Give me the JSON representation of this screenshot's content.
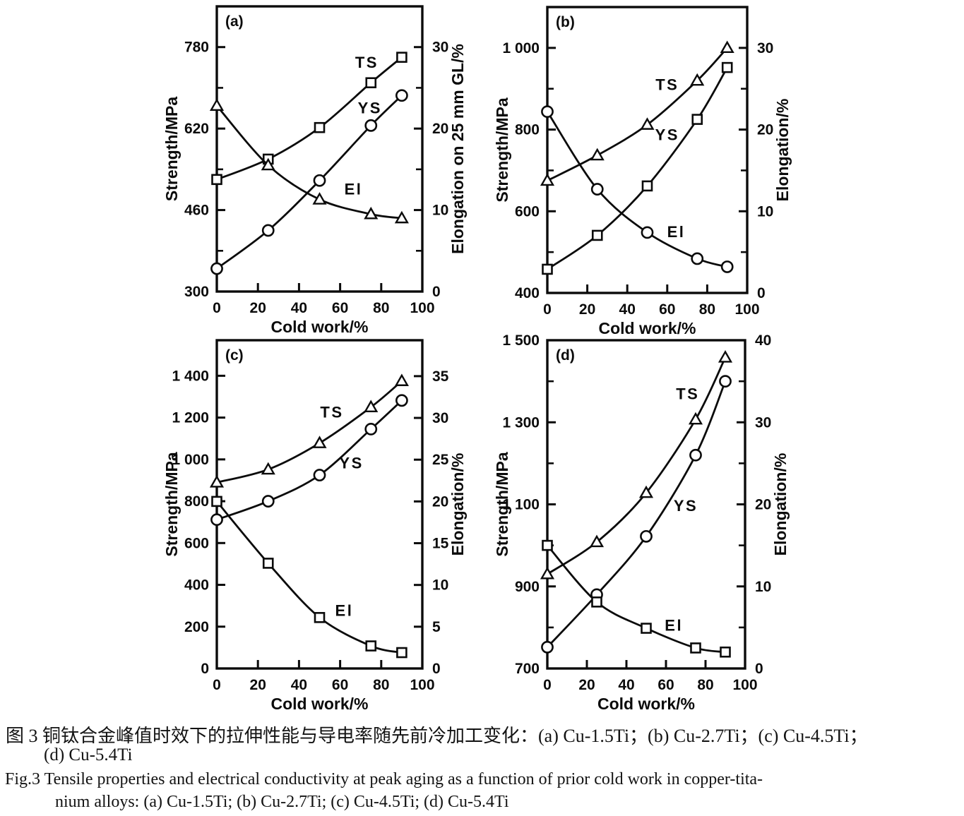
{
  "figure": {
    "caption_zh_line1": "图 3  铜钛合金峰值时效下的拉伸性能与导电率随先前冷加工变化：(a) Cu-1.5Ti；(b) Cu-2.7Ti；(c) Cu-4.5Ti；",
    "caption_zh_line2": "(d) Cu-5.4Ti",
    "caption_en_line1": "Fig.3 Tensile properties and electrical conductivity at peak aging as a function of prior cold work in copper-tita-",
    "caption_en_line2": "nium alloys: (a) Cu-1.5Ti; (b) Cu-2.7Ti; (c) Cu-4.5Ti; (d) Cu-5.4Ti"
  },
  "chart_data": [
    {
      "type": "line",
      "panel_label": "(a)",
      "alloy": "Cu-1.5Ti",
      "xlabel": "Cold work/%",
      "xlim": [
        0,
        100
      ],
      "x_ticks": [
        {
          "v": 0,
          "t": "0"
        },
        {
          "v": 20,
          "t": "20"
        },
        {
          "v": 40,
          "t": "40"
        },
        {
          "v": 60,
          "t": "60"
        },
        {
          "v": 80,
          "t": "80"
        },
        {
          "v": 100,
          "t": "100"
        }
      ],
      "x": [
        0,
        25,
        50,
        75,
        90
      ],
      "left_axis": {
        "label": "Strength/MPa",
        "lim": [
          300,
          860
        ],
        "major": [
          {
            "v": 780,
            "t": "780"
          },
          {
            "v": 620,
            "t": "620"
          },
          {
            "v": 460,
            "t": "460"
          },
          {
            "v": 300,
            "t": "300"
          }
        ],
        "minor": [
          380,
          540,
          700
        ]
      },
      "right_axis": {
        "label": "Elongation on 25 mm GL/%",
        "lim": [
          0,
          35
        ],
        "major": [
          {
            "v": 30,
            "t": "30"
          },
          {
            "v": 20,
            "t": "20"
          },
          {
            "v": 10,
            "t": "10"
          },
          {
            "v": 0,
            "t": "0"
          }
        ],
        "minor": [
          5,
          15,
          25
        ]
      },
      "series": [
        {
          "name": "TS",
          "axis": "left",
          "marker": "square",
          "values": [
            520,
            560,
            622,
            710,
            760
          ],
          "label_fx": 0.73,
          "label_fy": 0.215
        },
        {
          "name": "YS",
          "axis": "left",
          "marker": "circle",
          "values": [
            345,
            420,
            518,
            626,
            685
          ],
          "label_fx": 0.745,
          "label_fy": 0.375
        },
        {
          "name": "El",
          "axis": "right",
          "marker": "triangle",
          "values": [
            22.8,
            15.5,
            11.3,
            9.5,
            9.0
          ],
          "label_fx": 0.665,
          "label_fy": 0.66
        }
      ]
    },
    {
      "type": "line",
      "panel_label": "(b)",
      "alloy": "Cu-2.7Ti",
      "xlabel": "Cold work/%",
      "xlim": [
        0,
        100
      ],
      "x_ticks": [
        {
          "v": 0,
          "t": "0"
        },
        {
          "v": 20,
          "t": "20"
        },
        {
          "v": 40,
          "t": "40"
        },
        {
          "v": 60,
          "t": "60"
        },
        {
          "v": 80,
          "t": "80"
        },
        {
          "v": 100,
          "t": "100"
        }
      ],
      "x": [
        0,
        25,
        50,
        75,
        90
      ],
      "left_axis": {
        "label": "Strength/MPa",
        "lim": [
          400,
          1100
        ],
        "major": [
          {
            "v": 1000,
            "t": "1 000"
          },
          {
            "v": 800,
            "t": "800"
          },
          {
            "v": 600,
            "t": "600"
          },
          {
            "v": 400,
            "t": "400"
          }
        ],
        "minor": [
          500,
          700,
          900
        ]
      },
      "right_axis": {
        "label": "Elongation/%",
        "lim": [
          0,
          35
        ],
        "major": [
          {
            "v": 30,
            "t": "30"
          },
          {
            "v": 20,
            "t": "20"
          },
          {
            "v": 10,
            "t": "10"
          },
          {
            "v": 0,
            "t": "0"
          }
        ],
        "minor": [
          5,
          15,
          25
        ]
      },
      "series": [
        {
          "name": "TS",
          "axis": "left",
          "marker": "triangle",
          "values": [
            675,
            737,
            812,
            920,
            1000
          ],
          "label_fx": 0.6,
          "label_fy": 0.29
        },
        {
          "name": "YS",
          "axis": "left",
          "marker": "square",
          "values": [
            458,
            541,
            662,
            825,
            952
          ],
          "label_fx": 0.6,
          "label_fy": 0.465
        },
        {
          "name": "El",
          "axis": "right",
          "marker": "circle",
          "values": [
            22.2,
            12.7,
            7.4,
            4.2,
            3.2
          ],
          "label_fx": 0.645,
          "label_fy": 0.805
        }
      ]
    },
    {
      "type": "line",
      "panel_label": "(c)",
      "alloy": "Cu-4.5Ti",
      "xlabel": "Cold work/%",
      "xlim": [
        0,
        100
      ],
      "x_ticks": [
        {
          "v": 0,
          "t": "0"
        },
        {
          "v": 20,
          "t": "20"
        },
        {
          "v": 40,
          "t": "40"
        },
        {
          "v": 60,
          "t": "60"
        },
        {
          "v": 80,
          "t": "80"
        },
        {
          "v": 100,
          "t": "100"
        }
      ],
      "x": [
        0,
        25,
        50,
        75,
        90
      ],
      "left_axis": {
        "label": "Strength/MPa",
        "lim": [
          0,
          1570
        ],
        "major": [
          {
            "v": 1400,
            "t": "1 400"
          },
          {
            "v": 1200,
            "t": "1 200"
          },
          {
            "v": 1000,
            "t": "1 000"
          },
          {
            "v": 800,
            "t": "800"
          },
          {
            "v": 600,
            "t": "600"
          },
          {
            "v": 400,
            "t": "400"
          },
          {
            "v": 200,
            "t": "200"
          },
          {
            "v": 0,
            "t": "0"
          }
        ],
        "minor": []
      },
      "right_axis": {
        "label": "Elongation/%",
        "lim": [
          0,
          39.3
        ],
        "major": [
          {
            "v": 35,
            "t": "35"
          },
          {
            "v": 30,
            "t": "30"
          },
          {
            "v": 25,
            "t": "25"
          },
          {
            "v": 20,
            "t": "20"
          },
          {
            "v": 15,
            "t": "15"
          },
          {
            "v": 10,
            "t": "10"
          },
          {
            "v": 5,
            "t": "5"
          },
          {
            "v": 0,
            "t": "0"
          }
        ],
        "minor": []
      },
      "series": [
        {
          "name": "TS",
          "axis": "left",
          "marker": "triangle",
          "values": [
            890,
            952,
            1078,
            1250,
            1375
          ],
          "label_fx": 0.56,
          "label_fy": 0.235
        },
        {
          "name": "YS",
          "axis": "left",
          "marker": "circle",
          "values": [
            712,
            800,
            925,
            1145,
            1282
          ],
          "label_fx": 0.655,
          "label_fy": 0.39
        },
        {
          "name": "El",
          "axis": "right",
          "marker": "square",
          "values": [
            20,
            12.6,
            6.1,
            2.7,
            1.9
          ],
          "label_fx": 0.62,
          "label_fy": 0.84
        }
      ]
    },
    {
      "type": "line",
      "panel_label": "(d)",
      "alloy": "Cu-5.4Ti",
      "xlabel": "Cold work/%",
      "xlim": [
        0,
        100
      ],
      "x_ticks": [
        {
          "v": 0,
          "t": "0"
        },
        {
          "v": 20,
          "t": "20"
        },
        {
          "v": 40,
          "t": "40"
        },
        {
          "v": 60,
          "t": "60"
        },
        {
          "v": 80,
          "t": "80"
        },
        {
          "v": 100,
          "t": "100"
        }
      ],
      "x": [
        0,
        25,
        50,
        75,
        90
      ],
      "left_axis": {
        "label": "Strength/MPa",
        "lim": [
          700,
          1500
        ],
        "major": [
          {
            "v": 1500,
            "t": "1 500"
          },
          {
            "v": 1300,
            "t": "1 300"
          },
          {
            "v": 1100,
            "t": "1 100"
          },
          {
            "v": 900,
            "t": "900"
          },
          {
            "v": 700,
            "t": "700"
          }
        ],
        "minor": [
          800,
          1000,
          1200,
          1400
        ]
      },
      "right_axis": {
        "label": "Elongation/%",
        "lim": [
          0,
          40
        ],
        "major": [
          {
            "v": 40,
            "t": "40"
          },
          {
            "v": 30,
            "t": "30"
          },
          {
            "v": 20,
            "t": "20"
          },
          {
            "v": 10,
            "t": "10"
          },
          {
            "v": 0,
            "t": "0"
          }
        ],
        "minor": [
          5,
          15,
          25,
          35
        ]
      },
      "series": [
        {
          "name": "TS",
          "axis": "left",
          "marker": "triangle",
          "values": [
            930,
            1008,
            1128,
            1307,
            1458
          ],
          "label_fx": 0.71,
          "label_fy": 0.18
        },
        {
          "name": "YS",
          "axis": "left",
          "marker": "circle",
          "values": [
            752,
            880,
            1022,
            1220,
            1400
          ],
          "label_fx": 0.7,
          "label_fy": 0.52
        },
        {
          "name": "El",
          "axis": "right",
          "marker": "square",
          "values": [
            15,
            8.1,
            4.9,
            2.5,
            2.0
          ],
          "label_fx": 0.64,
          "label_fy": 0.885
        }
      ]
    }
  ]
}
